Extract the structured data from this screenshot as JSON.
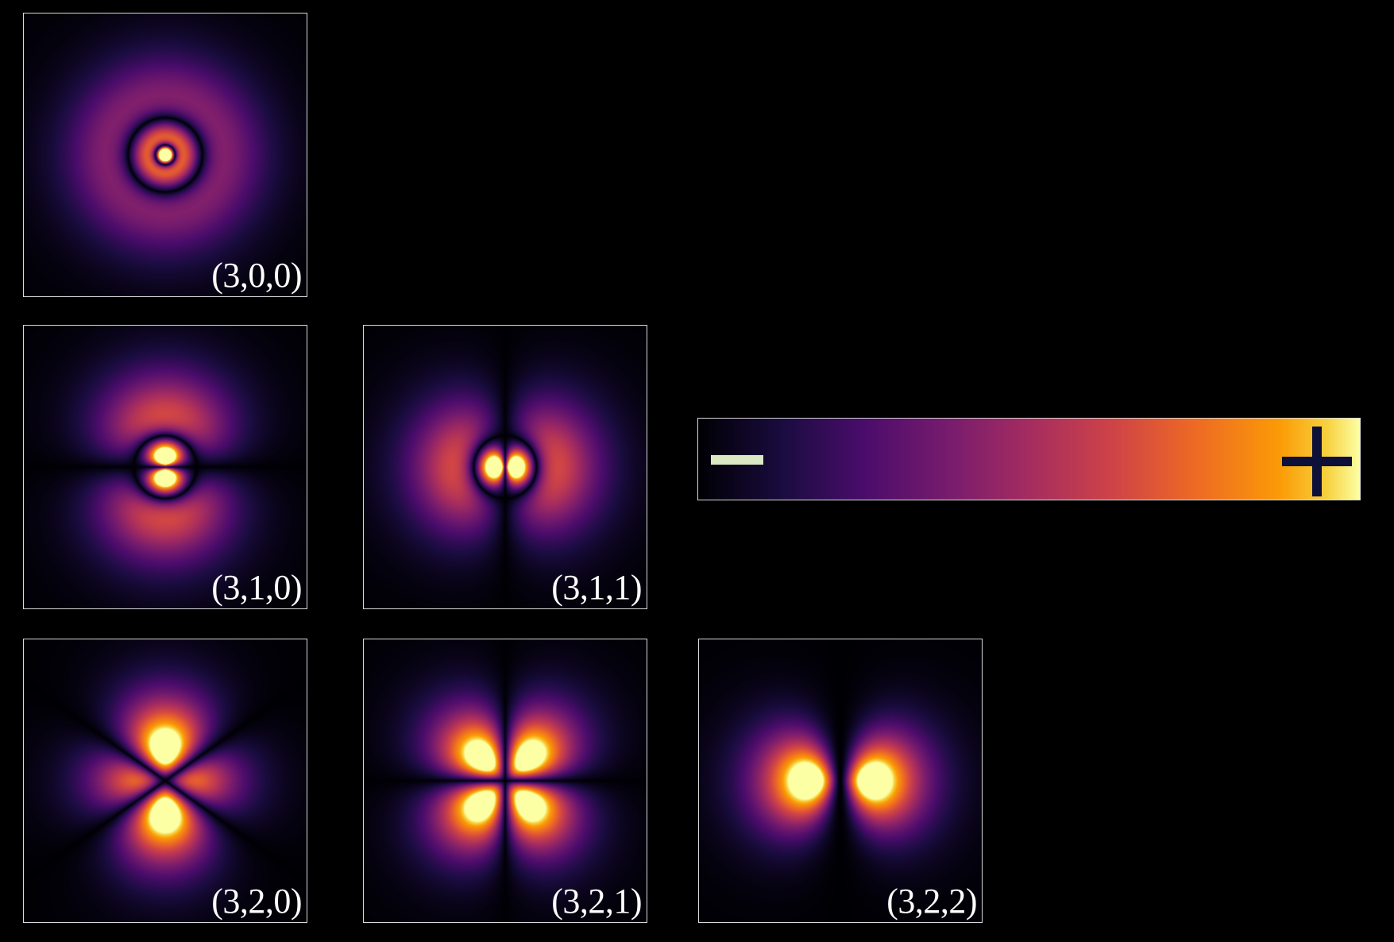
{
  "orbitals": [
    {
      "id": "3-0-0",
      "n": 3,
      "l": 0,
      "m": 0,
      "label": "(3,0,0)"
    },
    {
      "id": "3-1-0",
      "n": 3,
      "l": 1,
      "m": 0,
      "label": "(3,1,0)"
    },
    {
      "id": "3-1-1",
      "n": 3,
      "l": 1,
      "m": 1,
      "label": "(3,1,1)"
    },
    {
      "id": "3-2-0",
      "n": 3,
      "l": 2,
      "m": 0,
      "label": "(3,2,0)"
    },
    {
      "id": "3-2-1",
      "n": 3,
      "l": 2,
      "m": 1,
      "label": "(3,2,1)"
    },
    {
      "id": "3-2-2",
      "n": 3,
      "l": 2,
      "m": 2,
      "label": "(3,2,2)"
    }
  ],
  "colorbar": {
    "colormap": "inferno",
    "low_symbol": "minus-sign",
    "high_symbol": "plus-sign",
    "minus_color": "#dbe8c4",
    "plus_color": "#0d1038"
  }
}
